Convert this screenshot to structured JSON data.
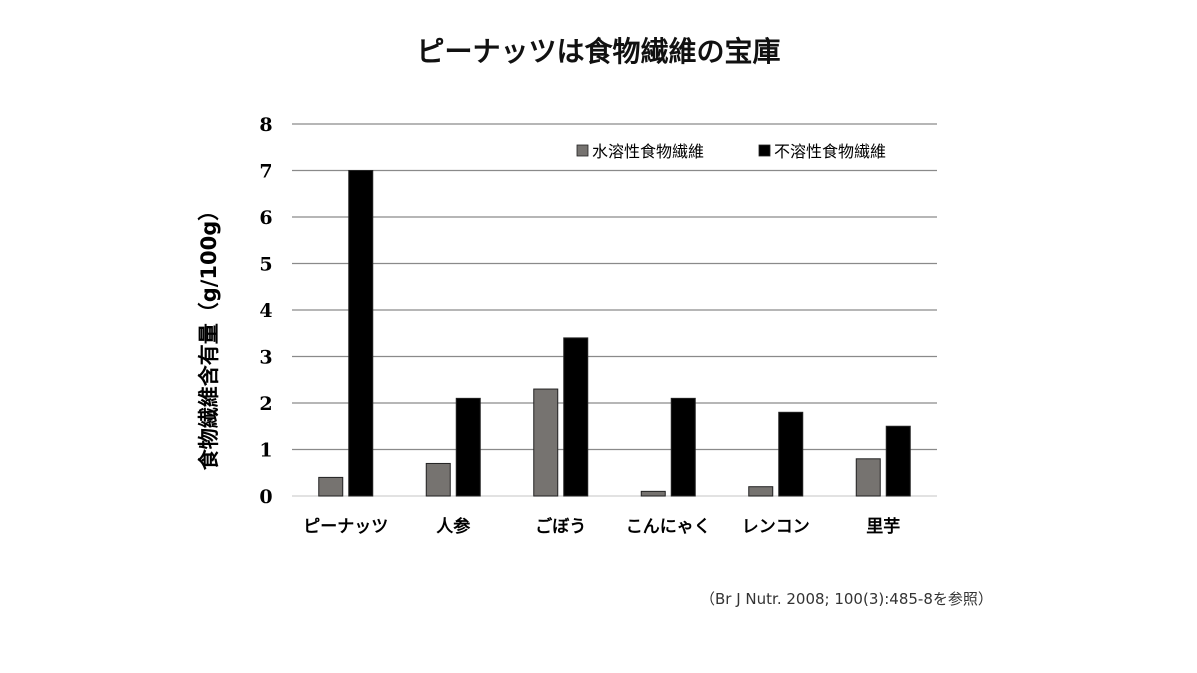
{
  "chart_data": {
    "type": "bar",
    "title": "ピーナッツは食物繊維の宝庫",
    "ylabel": "食物繊維含有量（g/100g）",
    "xlabel": "",
    "ylim": [
      0,
      8
    ],
    "yticks": [
      "0",
      "1",
      "2",
      "3",
      "4",
      "5",
      "6",
      "7",
      "8"
    ],
    "grid": true,
    "legend_position": "top-right",
    "categories": [
      "ピーナッツ",
      "人参",
      "ごぼう",
      "こんにゃく",
      "レンコン",
      "里芋"
    ],
    "series": [
      {
        "name": "水溶性食物繊維",
        "color": "#767370",
        "values": [
          0.4,
          0.7,
          2.3,
          0.1,
          0.2,
          0.8
        ]
      },
      {
        "name": "不溶性食物繊維",
        "color": "#000000",
        "values": [
          7.0,
          2.1,
          3.4,
          2.1,
          1.8,
          1.5
        ]
      }
    ]
  },
  "source": "（Br J Nutr. 2008; 100(3):485-8を参照）"
}
